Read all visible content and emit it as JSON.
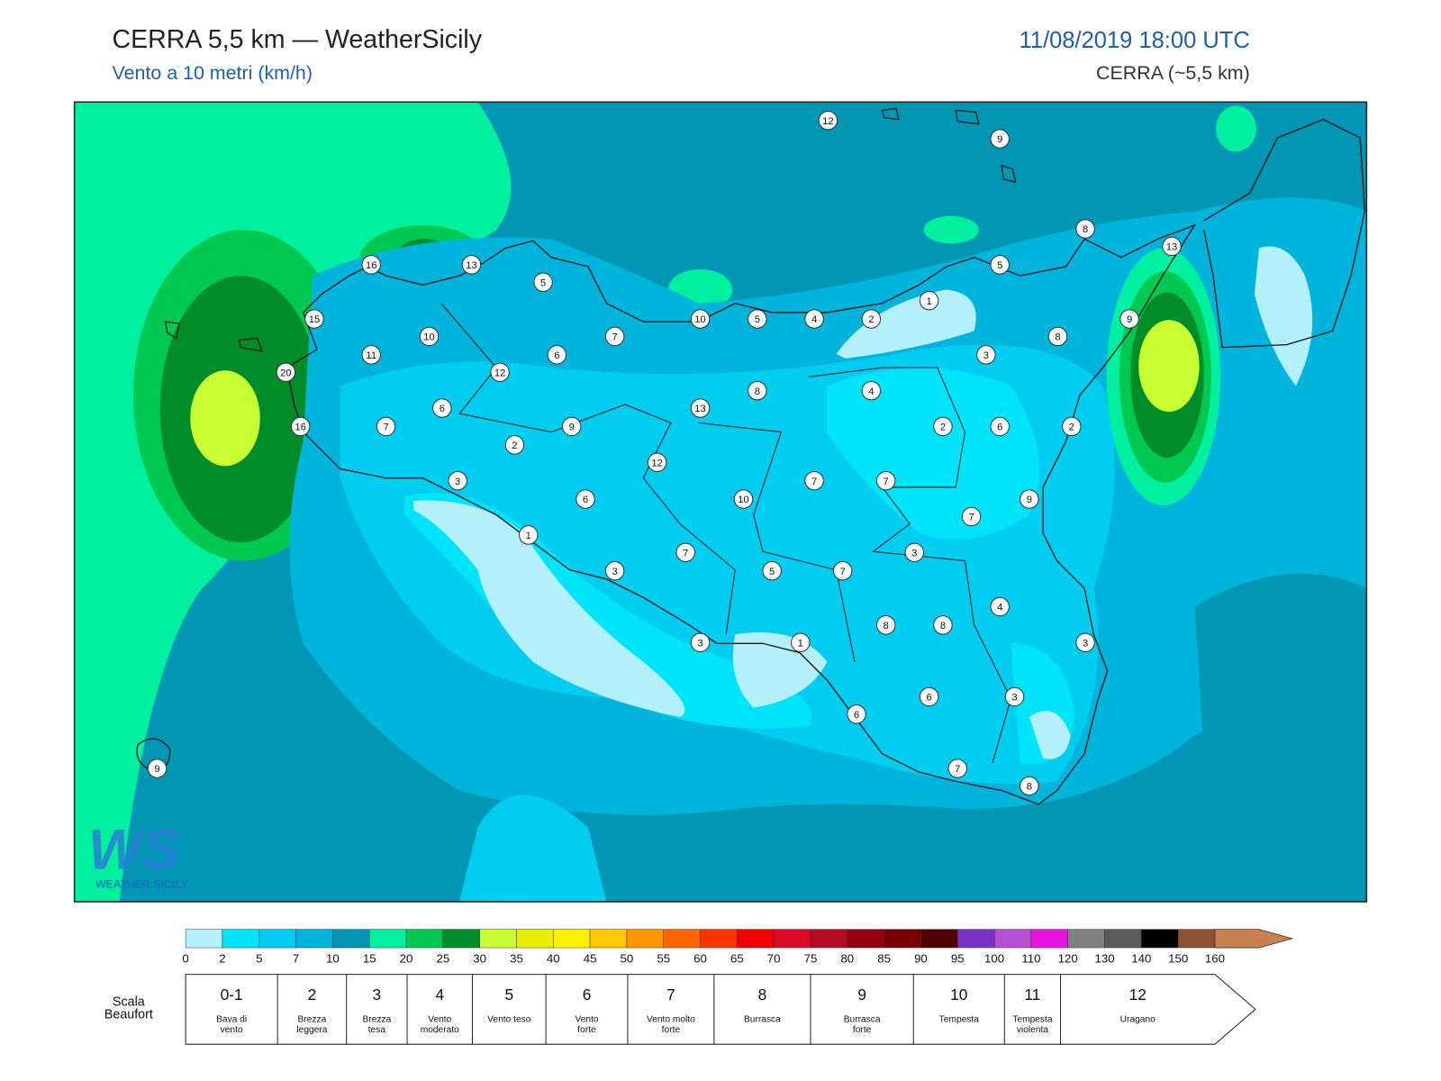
{
  "header": {
    "title": "CERRA 5,5 km — WeatherSicily",
    "subtitle": "Vento a 10 metri (km/h)",
    "datetime": "11/08/2019 18:00 UTC",
    "model": "CERRA (~5,5 km)"
  },
  "map": {
    "stations": [
      12,
      9,
      8,
      13,
      16,
      13,
      5,
      5,
      1,
      15,
      10,
      7,
      10,
      5,
      4,
      2,
      9,
      8,
      11,
      6,
      3,
      20,
      12,
      8,
      4,
      6,
      13,
      16,
      7,
      9,
      2,
      6,
      2,
      2,
      12,
      3,
      7,
      7,
      6,
      10,
      9,
      7,
      1,
      7,
      3,
      3,
      5,
      7,
      4,
      8,
      8,
      3,
      1,
      3,
      6,
      3,
      6,
      9,
      7,
      8
    ],
    "logo": {
      "mark": "WS",
      "text": "WEATHER SICILY"
    }
  },
  "colorbar": {
    "ticks": [
      0,
      2,
      5,
      7,
      10,
      15,
      20,
      25,
      30,
      35,
      40,
      45,
      50,
      55,
      60,
      65,
      70,
      75,
      80,
      85,
      90,
      95,
      100,
      110,
      120,
      130,
      140,
      150,
      160
    ],
    "colors": [
      "#b4f0fa",
      "#00e4fa",
      "#00cdf0",
      "#00b4dc",
      "#0096b4",
      "#00f0a0",
      "#00c850",
      "#008c28",
      "#c8ff32",
      "#e6f000",
      "#fff000",
      "#ffc800",
      "#ff9600",
      "#ff6400",
      "#ff3200",
      "#f00000",
      "#dc0a28",
      "#b40a28",
      "#960014",
      "#780000",
      "#500000",
      "#7832c8",
      "#b450d2",
      "#e614dc",
      "#808080",
      "#5a5a5a",
      "#000000",
      "#8c5032",
      "#c88250"
    ]
  },
  "beaufort": {
    "title": "Scala\nBeaufort",
    "classes": [
      {
        "force": "0-1",
        "label": "Bava di\nvento"
      },
      {
        "force": "2",
        "label": "Brezza\nleggera"
      },
      {
        "force": "3",
        "label": "Brezza\ntesa"
      },
      {
        "force": "4",
        "label": "Vento\nmoderato"
      },
      {
        "force": "5",
        "label": "Vento teso"
      },
      {
        "force": "6",
        "label": "Vento\nforte"
      },
      {
        "force": "7",
        "label": "Vento molto\nforte"
      },
      {
        "force": "8",
        "label": "Burrasca"
      },
      {
        "force": "9",
        "label": "Burrasca\nforte"
      },
      {
        "force": "10",
        "label": "Tempesta"
      },
      {
        "force": "11",
        "label": "Tempesta\nviolenta"
      },
      {
        "force": "12",
        "label": "Uragano"
      }
    ]
  }
}
